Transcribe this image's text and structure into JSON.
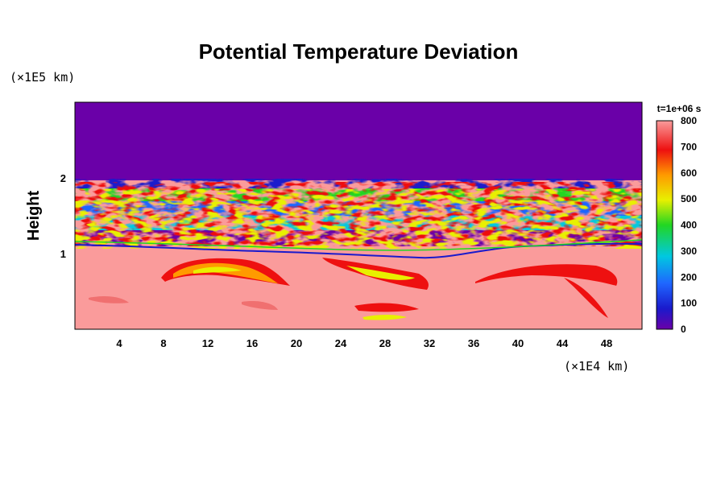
{
  "chart_data": {
    "type": "heatmap",
    "title": "Potential Temperature Deviation",
    "ylabel": "Height",
    "xlabel": "",
    "x_unit": "(×1E4 km)",
    "y_unit": "(×1E5 km)",
    "time_label": "t=1e+06 s",
    "x_ticks": [
      "4",
      "8",
      "12",
      "16",
      "20",
      "24",
      "28",
      "32",
      "36",
      "40",
      "44",
      "48"
    ],
    "y_ticks": [
      "1",
      "2"
    ],
    "xlim": [
      0,
      51.2
    ],
    "ylim": [
      0,
      3
    ],
    "colorbar": {
      "min": 0,
      "max": 800,
      "tick_labels": [
        "800",
        "700",
        "600",
        "500",
        "400",
        "300",
        "200",
        "100",
        "0"
      ]
    },
    "regions": [
      {
        "description_value": "upper layer",
        "y_range": [
          1.95,
          3.0
        ],
        "value": 0
      },
      {
        "description_value": "mixed turbulent layer",
        "y_range": [
          1.0,
          1.95
        ],
        "value_range": [
          0,
          800
        ]
      },
      {
        "description_value": "lower layer",
        "y_range": [
          0,
          1.0
        ],
        "value": 800
      }
    ],
    "grid": false,
    "legend": "colorbar-right"
  },
  "colors": {
    "low": "#6a00a8",
    "high": "#fa9b9b",
    "background": "#ffffff"
  }
}
